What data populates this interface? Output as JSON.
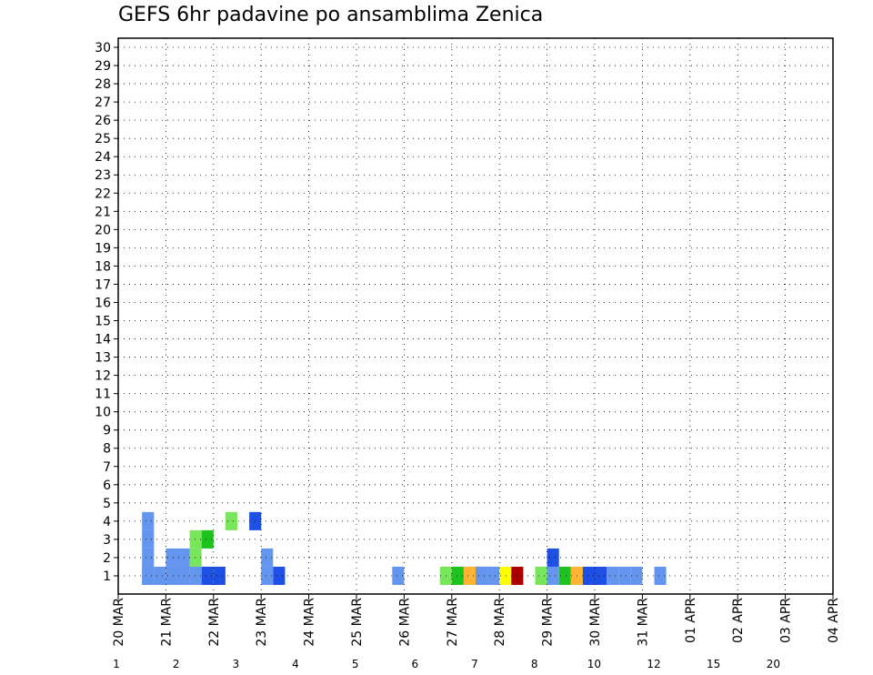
{
  "chart_data": {
    "type": "heatmap",
    "title": "GEFS 6hr padavine po ansamblima Zenica",
    "xlabel": "",
    "ylabel": "",
    "x_ticks": [
      "20 MAR",
      "21 MAR",
      "22 MAR",
      "23 MAR",
      "24 MAR",
      "25 MAR",
      "26 MAR",
      "27 MAR",
      "28 MAR",
      "29 MAR",
      "30 MAR",
      "31 MAR",
      "01 APR",
      "02 APR",
      "03 APR",
      "04 APR"
    ],
    "y_ticks": [
      "1",
      "2",
      "3",
      "4",
      "5",
      "6",
      "7",
      "8",
      "9",
      "10",
      "11",
      "12",
      "13",
      "14",
      "15",
      "16",
      "17",
      "18",
      "19",
      "20",
      "21",
      "22",
      "23",
      "24",
      "25",
      "26",
      "27",
      "28",
      "29",
      "30"
    ],
    "ylim": [
      0.5,
      30.5
    ],
    "grid": true,
    "colorbar": {
      "labels": [
        "1",
        "2",
        "3",
        "4",
        "5",
        "6",
        "7",
        "8",
        "10",
        "12",
        "15",
        "20"
      ],
      "colors": [
        "#b4c8f0",
        "#6496f0",
        "#1e50e6",
        "#78e65a",
        "#1ec31e",
        "#0a780a",
        "#ffff00",
        "#ffb432",
        "#ff7d00",
        "#e61e1e",
        "#aa0000",
        "#640014"
      ]
    },
    "steps_per_day": 4,
    "cells": [
      [
        1,
        2,
        1
      ],
      [
        1,
        4,
        1
      ],
      [
        1,
        5,
        1
      ],
      [
        2,
        4,
        1
      ],
      [
        2,
        5,
        1
      ],
      [
        1,
        29,
        1
      ],
      [
        1,
        30,
        1
      ],
      [
        1,
        30,
        1
      ],
      [
        4,
        2,
        1
      ],
      [
        4,
        9,
        3
      ],
      [
        4,
        11,
        2
      ],
      [
        1,
        12,
        1
      ],
      [
        2,
        12,
        1
      ],
      [
        1,
        2,
        1
      ],
      [
        2,
        2,
        1
      ],
      [
        3,
        2,
        1
      ],
      [
        2,
        6,
        3
      ],
      [
        3,
        6,
        3
      ],
      [
        3,
        7,
        4
      ],
      [
        1,
        6,
        1
      ],
      [
        1,
        7,
        2
      ],
      [
        1,
        8,
        2
      ],
      [
        1,
        13,
        2
      ],
      [
        1,
        23,
        1
      ],
      [
        1,
        27,
        3
      ],
      [
        1,
        28,
        4
      ],
      [
        1,
        29,
        7
      ],
      [
        1,
        30,
        1
      ],
      [
        1,
        31,
        1
      ],
      [
        1,
        32,
        6
      ],
      [
        1,
        33,
        10
      ],
      [
        1,
        35,
        3
      ],
      [
        1,
        36,
        1
      ],
      [
        2,
        36,
        2
      ],
      [
        1,
        37,
        4
      ],
      [
        1,
        38,
        7
      ],
      [
        1,
        39,
        2
      ],
      [
        1,
        40,
        2
      ],
      [
        1,
        41,
        1
      ],
      [
        1,
        42,
        1
      ],
      [
        1,
        43,
        1
      ],
      [
        1,
        45,
        1
      ],
      [
        1,
        4,
        1
      ],
      [
        1,
        5,
        1
      ],
      [
        1,
        3,
        1
      ]
    ]
  }
}
